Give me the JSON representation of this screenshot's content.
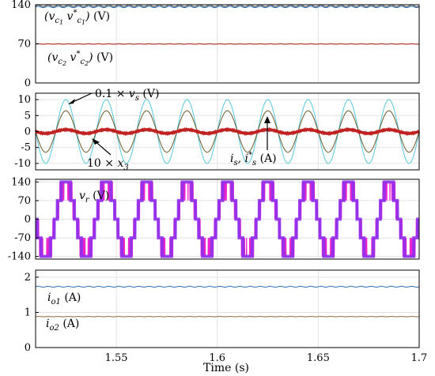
{
  "chart_data": [
    {
      "type": "line",
      "ylim": [
        0,
        140
      ],
      "yticks": [
        0,
        70,
        140
      ],
      "xlim": [
        1.51,
        1.7
      ],
      "grid": true,
      "series": [
        {
          "mean": 138,
          "amplitude": 1.6,
          "ripple_hz": 200,
          "color": "#555555"
        },
        {
          "mean": 136,
          "amplitude": 1.2,
          "ripple_hz": 200,
          "color": "#2b6fb5"
        },
        {
          "mean": 70,
          "amplitude": 0.4,
          "ripple_hz": 200,
          "color": "#8a6a3a"
        },
        {
          "mean": 69.5,
          "amplitude": 0.3,
          "ripple_hz": 200,
          "color": "#c04040"
        }
      ],
      "annotations": [
        {
          "text": "(v_c1 v*_c1) (V)",
          "at_x": 1.512,
          "at_y": 120
        },
        {
          "text": "(v_c2 v*_c2) (V)",
          "at_x": 1.513,
          "at_y": 50
        }
      ]
    },
    {
      "type": "line",
      "ylim": [
        -12,
        12
      ],
      "yticks": [
        -10,
        -5,
        0,
        5,
        10
      ],
      "xlim": [
        1.51,
        1.7
      ],
      "grid": true,
      "frequency_hz": 50,
      "series": [
        {
          "amplitude": 10,
          "color": "#55c8e0"
        },
        {
          "amplitude": 6.5,
          "color": "#6b5a2a"
        },
        {
          "amplitude": 0.6,
          "color": "#c02020"
        }
      ],
      "annotations": [
        {
          "text": "0.1 × v_s (V)",
          "at_x": 1.534,
          "at_y": 10.8
        },
        {
          "text": "10 × x_3",
          "at_x": 1.531,
          "at_y": -9.2
        },
        {
          "text": "i_s, i*_s (A)",
          "at_x": 1.615,
          "at_y": -7.2
        }
      ]
    },
    {
      "type": "line",
      "ylim": [
        -150,
        150
      ],
      "yticks": [
        -140,
        -70,
        0,
        70,
        140
      ],
      "xlim": [
        1.51,
        1.7
      ],
      "grid": true,
      "frequency_hz": 50,
      "levels": [
        -140,
        -70,
        0,
        70,
        140
      ],
      "series": [
        {
          "color": "#ee22cc"
        },
        {
          "color": "#8833ee"
        }
      ],
      "annotations": [
        {
          "text": "v_r (V)",
          "at_x": 1.527,
          "at_y": 75
        }
      ]
    },
    {
      "type": "line",
      "ylim": [
        0,
        2.2
      ],
      "yticks": [
        0,
        1,
        2
      ],
      "xlim": [
        1.51,
        1.7
      ],
      "xticks": [
        1.55,
        1.6,
        1.65,
        1.7
      ],
      "grid": true,
      "xlabel": "Time (s)",
      "series": [
        {
          "mean": 1.73,
          "amplitude": 0.012,
          "color": "#2b6fb5"
        },
        {
          "mean": 0.88,
          "amplitude": 0.004,
          "color": "#8a6a3a"
        }
      ],
      "annotations": [
        {
          "text": "i_o1 (A)",
          "at_x": 1.513,
          "at_y": 1.45
        },
        {
          "text": "i_o2 (A)",
          "at_x": 1.513,
          "at_y": 0.62
        }
      ]
    }
  ],
  "labels": {
    "xlabel": "Time (s)"
  }
}
